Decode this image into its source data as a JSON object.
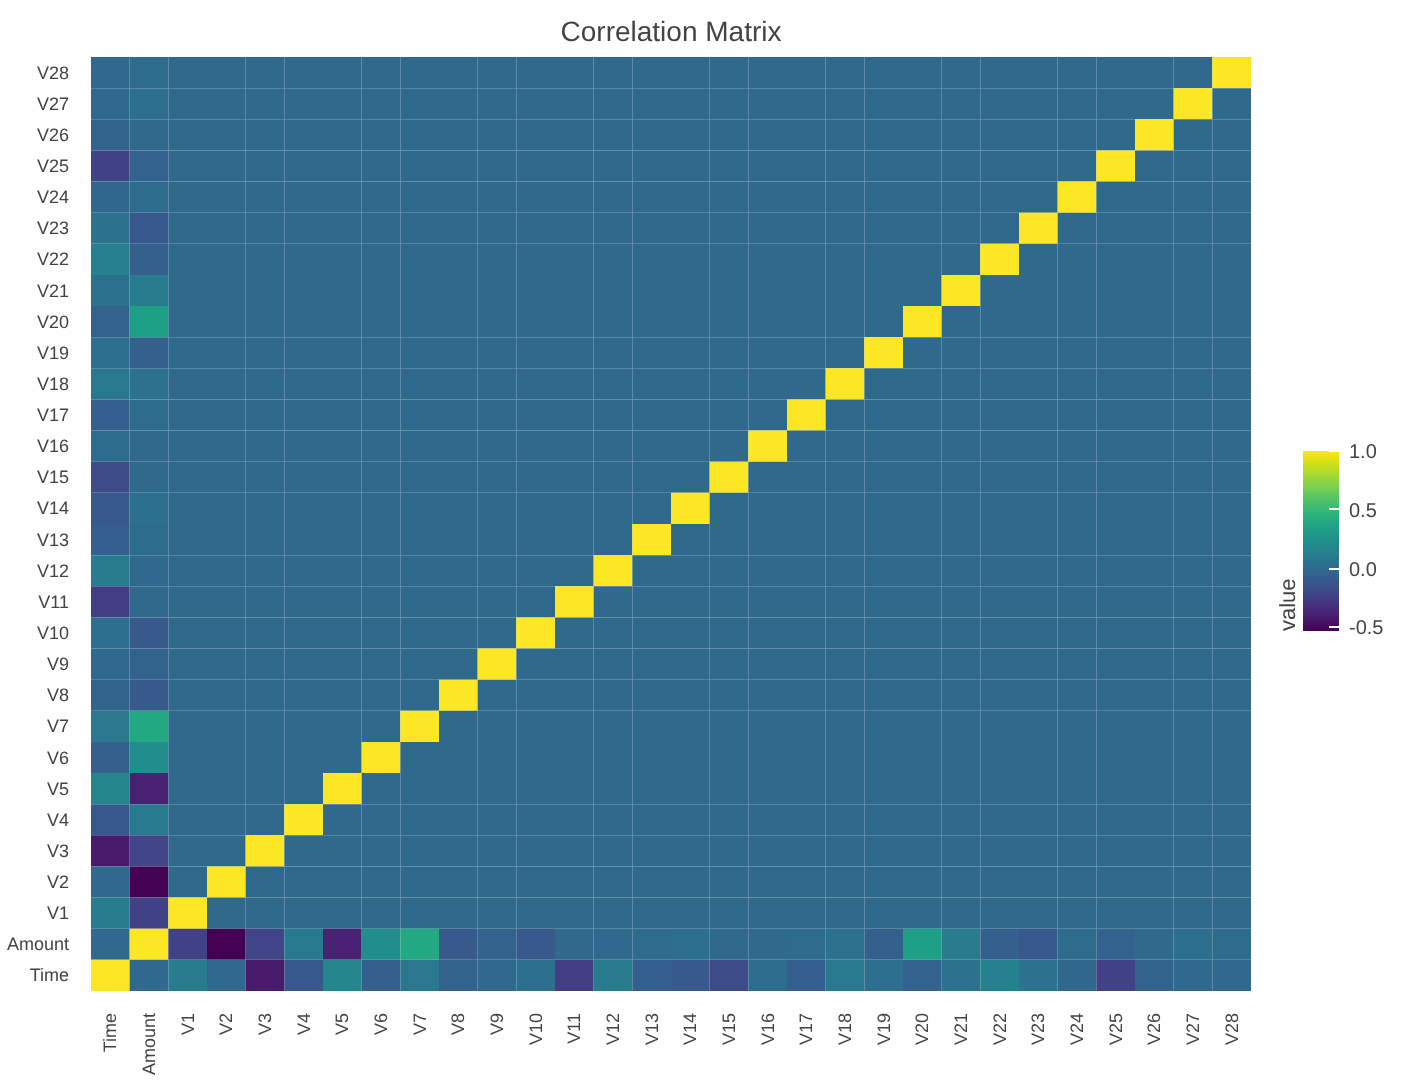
{
  "chart_data": {
    "type": "heatmap",
    "title": "Correlation Matrix",
    "clabel": "value",
    "categories": [
      "Time",
      "Amount",
      "V1",
      "V2",
      "V3",
      "V4",
      "V5",
      "V6",
      "V7",
      "V8",
      "V9",
      "V10",
      "V11",
      "V12",
      "V13",
      "V14",
      "V15",
      "V16",
      "V17",
      "V18",
      "V19",
      "V20",
      "V21",
      "V22",
      "V23",
      "V24",
      "V25",
      "V26",
      "V27",
      "V28"
    ],
    "y_categories": [
      "V28",
      "V27",
      "V26",
      "V25",
      "V24",
      "V23",
      "V22",
      "V21",
      "V20",
      "V19",
      "V18",
      "V17",
      "V16",
      "V15",
      "V14",
      "V13",
      "V12",
      "V11",
      "V10",
      "V9",
      "V8",
      "V7",
      "V6",
      "V5",
      "V4",
      "V3",
      "V2",
      "V1",
      "Amount",
      "Time"
    ],
    "clim": [
      -0.53,
      1
    ],
    "cticks": [
      {
        "value": -0.5,
        "label": "-0.5"
      },
      {
        "value": 0,
        "label": "0.0"
      },
      {
        "value": 0.5,
        "label": "0.5"
      },
      {
        "value": 1,
        "label": "1.0"
      }
    ],
    "cells": [
      [
        -0.01,
        0.01,
        0,
        0,
        0,
        0,
        0,
        0,
        0,
        0,
        0,
        0,
        0,
        0,
        0,
        0,
        0,
        0,
        0,
        0,
        0,
        0,
        0,
        0,
        0,
        0,
        0,
        0,
        0,
        1
      ],
      [
        -0.01,
        0.03,
        0,
        0,
        0,
        0,
        0,
        0,
        0,
        0,
        0,
        0,
        0,
        0,
        0,
        0,
        0,
        0,
        0,
        0,
        0,
        0,
        0,
        0,
        0,
        0,
        0,
        0,
        1,
        0
      ],
      [
        -0.04,
        0,
        0,
        0,
        0,
        0,
        0,
        0,
        0,
        0,
        0,
        0,
        0,
        0,
        0,
        0,
        0,
        0,
        0,
        0,
        0,
        0,
        0,
        0,
        0,
        0,
        0,
        1,
        0,
        0
      ],
      [
        -0.23,
        -0.05,
        0,
        0,
        0,
        0,
        0,
        0,
        0,
        0,
        0,
        0,
        0,
        0,
        0,
        0,
        0,
        0,
        0,
        0,
        0,
        0,
        0,
        0,
        0,
        0,
        1,
        0,
        0,
        0
      ],
      [
        -0.02,
        0.01,
        0,
        0,
        0,
        0,
        0,
        0,
        0,
        0,
        0,
        0,
        0,
        0,
        0,
        0,
        0,
        0,
        0,
        0,
        0,
        0,
        0,
        0,
        0,
        1,
        0,
        0,
        0,
        0
      ],
      [
        0.05,
        -0.11,
        0,
        0,
        0,
        0,
        0,
        0,
        0,
        0,
        0,
        0,
        0,
        0,
        0,
        0,
        0,
        0,
        0,
        0,
        0,
        0,
        0,
        0,
        1,
        0,
        0,
        0,
        0,
        0
      ],
      [
        0.14,
        -0.06,
        0,
        0,
        0,
        0,
        0,
        0,
        0,
        0,
        0,
        0,
        0,
        0,
        0,
        0,
        0,
        0,
        0,
        0,
        0,
        0,
        0,
        1,
        0,
        0,
        0,
        0,
        0,
        0
      ],
      [
        0.04,
        0.11,
        0,
        0,
        0,
        0,
        0,
        0,
        0,
        0,
        0,
        0,
        0,
        0,
        0,
        0,
        0,
        0,
        0,
        0,
        0,
        0,
        1,
        0,
        0,
        0,
        0,
        0,
        0,
        0
      ],
      [
        -0.05,
        0.34,
        0,
        0,
        0,
        0,
        0,
        0,
        0,
        0,
        0,
        0,
        0,
        0,
        0,
        0,
        0,
        0,
        0,
        0,
        0,
        1,
        0,
        0,
        0,
        0,
        0,
        0,
        0,
        0
      ],
      [
        0.03,
        -0.06,
        0,
        0,
        0,
        0,
        0,
        0,
        0,
        0,
        0,
        0,
        0,
        0,
        0,
        0,
        0,
        0,
        0,
        0,
        1,
        0,
        0,
        0,
        0,
        0,
        0,
        0,
        0,
        0
      ],
      [
        0.09,
        0.04,
        0,
        0,
        0,
        0,
        0,
        0,
        0,
        0,
        0,
        0,
        0,
        0,
        0,
        0,
        0,
        0,
        0,
        1,
        0,
        0,
        0,
        0,
        0,
        0,
        0,
        0,
        0,
        0
      ],
      [
        -0.07,
        0.01,
        0,
        0,
        0,
        0,
        0,
        0,
        0,
        0,
        0,
        0,
        0,
        0,
        0,
        0,
        0,
        0,
        1,
        0,
        0,
        0,
        0,
        0,
        0,
        0,
        0,
        0,
        0,
        0
      ],
      [
        0.01,
        0,
        0,
        0,
        0,
        0,
        0,
        0,
        0,
        0,
        0,
        0,
        0,
        0,
        0,
        0,
        0,
        1,
        0,
        0,
        0,
        0,
        0,
        0,
        0,
        0,
        0,
        0,
        0,
        0
      ],
      [
        -0.18,
        0,
        0,
        0,
        0,
        0,
        0,
        0,
        0,
        0,
        0,
        0,
        0,
        0,
        0,
        0,
        1,
        0,
        0,
        0,
        0,
        0,
        0,
        0,
        0,
        0,
        0,
        0,
        0,
        0
      ],
      [
        -0.1,
        0.03,
        0,
        0,
        0,
        0,
        0,
        0,
        0,
        0,
        0,
        0,
        0,
        0,
        0,
        1,
        0,
        0,
        0,
        0,
        0,
        0,
        0,
        0,
        0,
        0,
        0,
        0,
        0,
        0
      ],
      [
        -0.07,
        0.01,
        0,
        0,
        0,
        0,
        0,
        0,
        0,
        0,
        0,
        0,
        0,
        0,
        1,
        0,
        0,
        0,
        0,
        0,
        0,
        0,
        0,
        0,
        0,
        0,
        0,
        0,
        0,
        0
      ],
      [
        0.12,
        -0.01,
        0,
        0,
        0,
        0,
        0,
        0,
        0,
        0,
        0,
        0,
        0,
        1,
        0,
        0,
        0,
        0,
        0,
        0,
        0,
        0,
        0,
        0,
        0,
        0,
        0,
        0,
        0,
        0
      ],
      [
        -0.25,
        0,
        0,
        0,
        0,
        0,
        0,
        0,
        0,
        0,
        0,
        0,
        1,
        0,
        0,
        0,
        0,
        0,
        0,
        0,
        0,
        0,
        0,
        0,
        0,
        0,
        0,
        0,
        0,
        0
      ],
      [
        0.03,
        -0.1,
        0,
        0,
        0,
        0,
        0,
        0,
        0,
        0,
        0,
        1,
        0,
        0,
        0,
        0,
        0,
        0,
        0,
        0,
        0,
        0,
        0,
        0,
        0,
        0,
        0,
        0,
        0,
        0
      ],
      [
        -0.01,
        -0.04,
        0,
        0,
        0,
        0,
        0,
        0,
        0,
        0,
        1,
        0,
        0,
        0,
        0,
        0,
        0,
        0,
        0,
        0,
        0,
        0,
        0,
        0,
        0,
        0,
        0,
        0,
        0,
        0
      ],
      [
        -0.04,
        -0.1,
        0,
        0,
        0,
        0,
        0,
        0,
        0,
        1,
        0,
        0,
        0,
        0,
        0,
        0,
        0,
        0,
        0,
        0,
        0,
        0,
        0,
        0,
        0,
        0,
        0,
        0,
        0,
        0
      ],
      [
        0.08,
        0.4,
        0,
        0,
        0,
        0,
        0,
        0,
        1,
        0,
        0,
        0,
        0,
        0,
        0,
        0,
        0,
        0,
        0,
        0,
        0,
        0,
        0,
        0,
        0,
        0,
        0,
        0,
        0,
        0
      ],
      [
        -0.06,
        0.22,
        0,
        0,
        0,
        0,
        0,
        1,
        0,
        0,
        0,
        0,
        0,
        0,
        0,
        0,
        0,
        0,
        0,
        0,
        0,
        0,
        0,
        0,
        0,
        0,
        0,
        0,
        0,
        0
      ],
      [
        0.17,
        -0.39,
        0,
        0,
        0,
        0,
        1,
        0,
        0,
        0,
        0,
        0,
        0,
        0,
        0,
        0,
        0,
        0,
        0,
        0,
        0,
        0,
        0,
        0,
        0,
        0,
        0,
        0,
        0,
        0
      ],
      [
        -0.11,
        0.1,
        0,
        0,
        0,
        1,
        0,
        0,
        0,
        0,
        0,
        0,
        0,
        0,
        0,
        0,
        0,
        0,
        0,
        0,
        0,
        0,
        0,
        0,
        0,
        0,
        0,
        0,
        0,
        0
      ],
      [
        -0.42,
        -0.21,
        0,
        0,
        1,
        0,
        0,
        0,
        0,
        0,
        0,
        0,
        0,
        0,
        0,
        0,
        0,
        0,
        0,
        0,
        0,
        0,
        0,
        0,
        0,
        0,
        0,
        0,
        0,
        0
      ],
      [
        -0.01,
        -0.53,
        0,
        1,
        0,
        0,
        0,
        0,
        0,
        0,
        0,
        0,
        0,
        0,
        0,
        0,
        0,
        0,
        0,
        0,
        0,
        0,
        0,
        0,
        0,
        0,
        0,
        0,
        0,
        0
      ],
      [
        0.12,
        -0.23,
        1,
        0,
        0,
        0,
        0,
        0,
        0,
        0,
        0,
        0,
        0,
        0,
        0,
        0,
        0,
        0,
        0,
        0,
        0,
        0,
        0,
        0,
        0,
        0,
        0,
        0,
        0,
        0
      ],
      [
        -0.01,
        1,
        -0.23,
        -0.53,
        -0.21,
        0.1,
        -0.39,
        0.22,
        0.4,
        -0.1,
        -0.04,
        -0.1,
        0,
        -0.01,
        0.01,
        0.03,
        0,
        0,
        0.01,
        0.04,
        -0.06,
        0.34,
        0.11,
        -0.06,
        -0.11,
        0.01,
        -0.05,
        0,
        0.03,
        0.01
      ],
      [
        1,
        -0.01,
        0.12,
        -0.01,
        -0.42,
        -0.11,
        0.17,
        -0.06,
        0.08,
        -0.04,
        -0.01,
        0.03,
        -0.25,
        0.12,
        -0.07,
        -0.1,
        -0.18,
        0.01,
        -0.07,
        0.09,
        0.03,
        -0.05,
        0.04,
        0.14,
        0.05,
        -0.02,
        -0.23,
        -0.04,
        -0.01,
        -0.01
      ]
    ]
  }
}
